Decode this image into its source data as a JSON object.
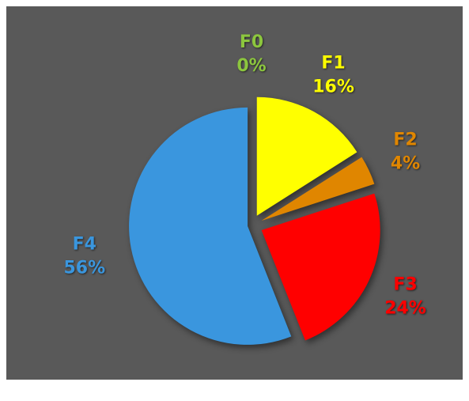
{
  "chart_data": {
    "type": "pie",
    "categories": [
      "F0",
      "F1",
      "F2",
      "F3",
      "F4"
    ],
    "values": [
      0,
      16,
      4,
      24,
      56
    ],
    "value_labels": [
      "0%",
      "16%",
      "4%",
      "24%",
      "56%"
    ],
    "colors": [
      "#8cc63e",
      "#ffff00",
      "#e08600",
      "#ff0000",
      "#3a96de"
    ]
  }
}
